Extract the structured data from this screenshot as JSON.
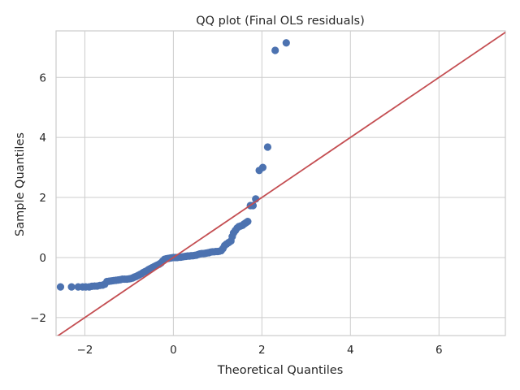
{
  "chart_data": {
    "type": "scatter",
    "title": "QQ plot (Final OLS residuals)",
    "xlabel": "Theoretical Quantiles",
    "ylabel": "Sample Quantiles",
    "xlim": [
      -2.65,
      7.5
    ],
    "ylim": [
      -2.6,
      7.55
    ],
    "xticks": [
      -2,
      0,
      2,
      4,
      6
    ],
    "yticks": [
      -2,
      0,
      2,
      4,
      6
    ],
    "grid": true,
    "point_color": "#4c72b0",
    "line_color": "#c44e52",
    "reference_line": {
      "slope": 1,
      "intercept": 0
    },
    "series": [
      {
        "points": [
          [
            -2.55,
            -0.98
          ],
          [
            -2.3,
            -0.98
          ],
          [
            -2.15,
            -0.98
          ],
          [
            -2.05,
            -0.98
          ],
          [
            -1.98,
            -0.98
          ],
          [
            -1.9,
            -0.98
          ],
          [
            -1.84,
            -0.96
          ],
          [
            -1.78,
            -0.95
          ],
          [
            -1.72,
            -0.95
          ],
          [
            -1.66,
            -0.93
          ],
          [
            -1.6,
            -0.92
          ],
          [
            -1.55,
            -0.89
          ],
          [
            -1.5,
            -0.8
          ],
          [
            -1.45,
            -0.79
          ],
          [
            -1.4,
            -0.78
          ],
          [
            -1.35,
            -0.77
          ],
          [
            -1.3,
            -0.76
          ],
          [
            -1.25,
            -0.75
          ],
          [
            -1.2,
            -0.74
          ],
          [
            -1.15,
            -0.72
          ],
          [
            -1.1,
            -0.72
          ],
          [
            -1.05,
            -0.72
          ],
          [
            -1.0,
            -0.71
          ],
          [
            -0.96,
            -0.7
          ],
          [
            -0.92,
            -0.68
          ],
          [
            -0.88,
            -0.65
          ],
          [
            -0.84,
            -0.63
          ],
          [
            -0.8,
            -0.6
          ],
          [
            -0.76,
            -0.57
          ],
          [
            -0.72,
            -0.54
          ],
          [
            -0.68,
            -0.5
          ],
          [
            -0.64,
            -0.47
          ],
          [
            -0.6,
            -0.44
          ],
          [
            -0.56,
            -0.4
          ],
          [
            -0.52,
            -0.37
          ],
          [
            -0.48,
            -0.34
          ],
          [
            -0.44,
            -0.31
          ],
          [
            -0.4,
            -0.28
          ],
          [
            -0.36,
            -0.25
          ],
          [
            -0.32,
            -0.22
          ],
          [
            -0.28,
            -0.18
          ],
          [
            -0.24,
            -0.12
          ],
          [
            -0.2,
            -0.06
          ],
          [
            -0.16,
            -0.04
          ],
          [
            -0.12,
            -0.03
          ],
          [
            -0.08,
            -0.02
          ],
          [
            -0.04,
            -0.01
          ],
          [
            0.0,
            0.0
          ],
          [
            0.04,
            0.0
          ],
          [
            0.08,
            0.0
          ],
          [
            0.12,
            0.01
          ],
          [
            0.16,
            0.01
          ],
          [
            0.2,
            0.02
          ],
          [
            0.24,
            0.03
          ],
          [
            0.28,
            0.04
          ],
          [
            0.32,
            0.05
          ],
          [
            0.36,
            0.05
          ],
          [
            0.4,
            0.06
          ],
          [
            0.44,
            0.06
          ],
          [
            0.48,
            0.07
          ],
          [
            0.52,
            0.08
          ],
          [
            0.56,
            0.1
          ],
          [
            0.6,
            0.12
          ],
          [
            0.64,
            0.13
          ],
          [
            0.68,
            0.13
          ],
          [
            0.72,
            0.14
          ],
          [
            0.76,
            0.15
          ],
          [
            0.8,
            0.16
          ],
          [
            0.84,
            0.18
          ],
          [
            0.88,
            0.19
          ],
          [
            0.92,
            0.19
          ],
          [
            0.96,
            0.2
          ],
          [
            1.0,
            0.2
          ],
          [
            1.04,
            0.21
          ],
          [
            1.08,
            0.23
          ],
          [
            1.12,
            0.3
          ],
          [
            1.16,
            0.4
          ],
          [
            1.2,
            0.45
          ],
          [
            1.25,
            0.5
          ],
          [
            1.3,
            0.55
          ],
          [
            1.33,
            0.7
          ],
          [
            1.36,
            0.82
          ],
          [
            1.4,
            0.9
          ],
          [
            1.44,
            0.98
          ],
          [
            1.48,
            1.03
          ],
          [
            1.52,
            1.05
          ],
          [
            1.56,
            1.07
          ],
          [
            1.6,
            1.12
          ],
          [
            1.64,
            1.16
          ],
          [
            1.68,
            1.2
          ],
          [
            1.74,
            1.73
          ],
          [
            1.8,
            1.73
          ],
          [
            1.86,
            1.95
          ],
          [
            1.94,
            2.9
          ],
          [
            2.02,
            3.0
          ],
          [
            2.13,
            3.68
          ],
          [
            2.3,
            6.9
          ],
          [
            2.55,
            7.15
          ]
        ]
      }
    ]
  }
}
